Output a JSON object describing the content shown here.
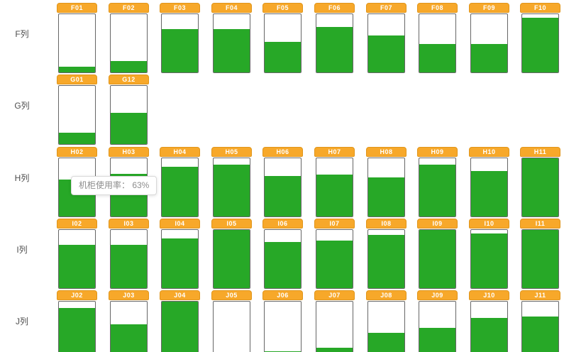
{
  "tooltip": {
    "text": "机柜使用率： 63%",
    "label": "机柜使用率",
    "value": "63%"
  },
  "colors": {
    "header_orange": "#F7A82A",
    "header_border": "#E0951A",
    "fill_green": "#27A827",
    "body_border": "#666666",
    "body_bg": "#ffffff",
    "label_color": "#4d4d4d",
    "tooltip_text": "#8c8c8c",
    "tooltip_border": "#d9d9d9"
  },
  "chart_data": {
    "type": "bar",
    "title": "机柜使用率",
    "unit": "%",
    "ylim": [
      0,
      100
    ],
    "orientation": "vertical-fill-gauges",
    "rows": [
      {
        "label": "F列",
        "cabinets": [
          {
            "id": "F01",
            "usage": 10
          },
          {
            "id": "F02",
            "usage": 20
          },
          {
            "id": "F03",
            "usage": 75
          },
          {
            "id": "F04",
            "usage": 74
          },
          {
            "id": "F05",
            "usage": 52
          },
          {
            "id": "F06",
            "usage": 78
          },
          {
            "id": "F07",
            "usage": 63
          },
          {
            "id": "F08",
            "usage": 49
          },
          {
            "id": "F09",
            "usage": 49
          },
          {
            "id": "F10",
            "usage": 94
          }
        ]
      },
      {
        "label": "G列",
        "cabinets": [
          {
            "id": "G01",
            "usage": 20
          },
          {
            "id": "G12",
            "usage": 54
          }
        ]
      },
      {
        "label": "H列",
        "cabinets": [
          {
            "id": "H02",
            "usage": 63
          },
          {
            "id": "H03",
            "usage": 73
          },
          {
            "id": "H04",
            "usage": 85
          },
          {
            "id": "H05",
            "usage": 89
          },
          {
            "id": "H06",
            "usage": 69
          },
          {
            "id": "H07",
            "usage": 72
          },
          {
            "id": "H08",
            "usage": 67
          },
          {
            "id": "H09",
            "usage": 89
          },
          {
            "id": "H10",
            "usage": 78
          },
          {
            "id": "H11",
            "usage": 100
          }
        ]
      },
      {
        "label": "I列",
        "cabinets": [
          {
            "id": "I02",
            "usage": 74
          },
          {
            "id": "I03",
            "usage": 74
          },
          {
            "id": "I04",
            "usage": 85
          },
          {
            "id": "I05",
            "usage": 100
          },
          {
            "id": "I06",
            "usage": 79
          },
          {
            "id": "I07",
            "usage": 82
          },
          {
            "id": "I08",
            "usage": 92
          },
          {
            "id": "I09",
            "usage": 100
          },
          {
            "id": "I10",
            "usage": 94
          },
          {
            "id": "I11",
            "usage": 100
          }
        ]
      },
      {
        "label": "J列",
        "cabinets": [
          {
            "id": "J02",
            "usage": 89
          },
          {
            "id": "J03",
            "usage": 61
          },
          {
            "id": "J04",
            "usage": 100
          },
          {
            "id": "J05",
            "usage": 5
          },
          {
            "id": "J06",
            "usage": 15
          },
          {
            "id": "J07",
            "usage": 21
          },
          {
            "id": "J08",
            "usage": 46
          },
          {
            "id": "J09",
            "usage": 55
          },
          {
            "id": "J10",
            "usage": 72
          },
          {
            "id": "J11",
            "usage": 75
          }
        ]
      }
    ]
  }
}
